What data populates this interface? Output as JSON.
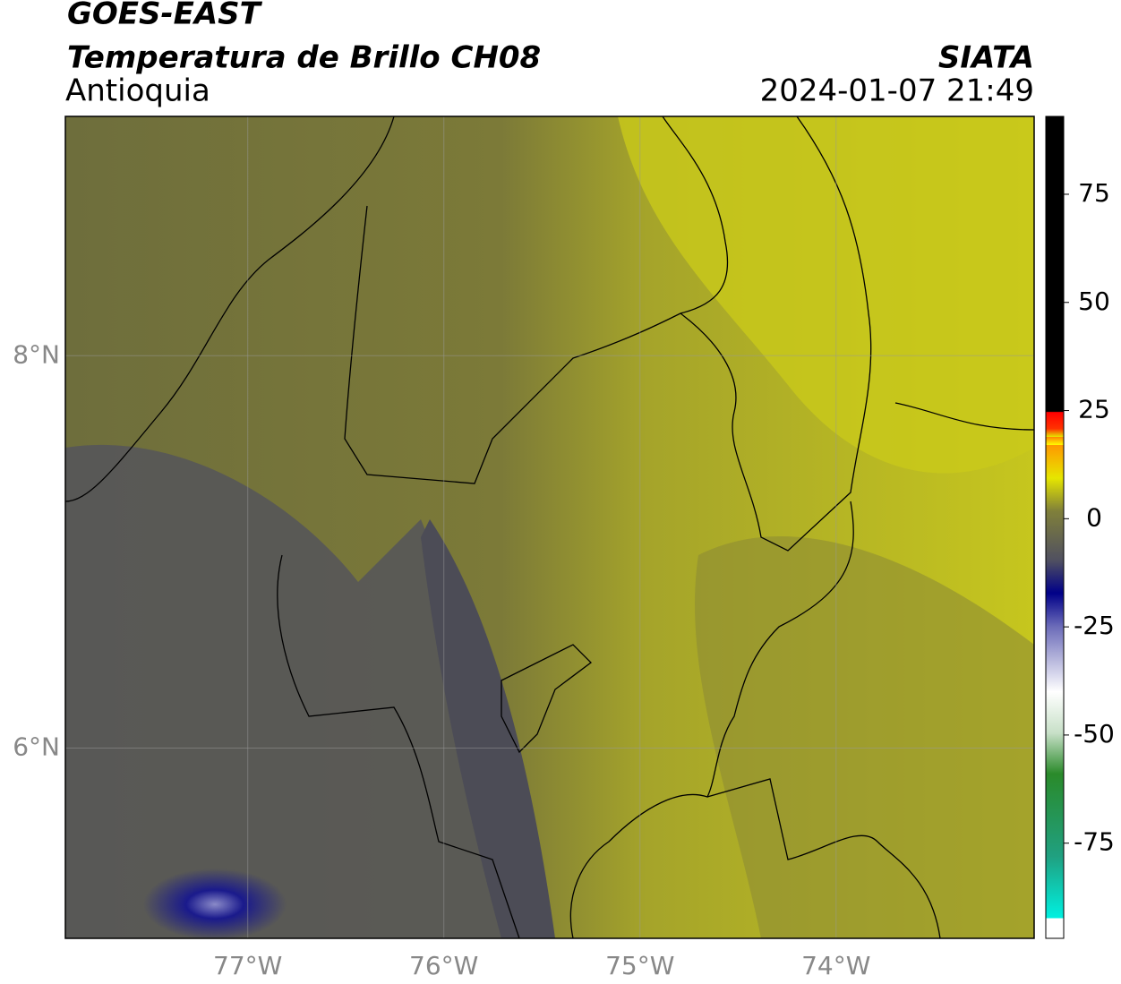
{
  "header": {
    "title": "GOES-EAST",
    "subtitle": "Temperatura de Brillo CH08",
    "region": "Antioquia",
    "source": "SIATA",
    "datetime": "2024-01-07 21:49"
  },
  "map": {
    "xlim": [
      -77.93,
      -72.99
    ],
    "ylim": [
      5.03,
      9.22
    ],
    "xticks": [
      {
        "value": -77,
        "label": "77°W"
      },
      {
        "value": -76,
        "label": "76°W"
      },
      {
        "value": -75,
        "label": "75°W"
      },
      {
        "value": -74,
        "label": "74°W"
      }
    ],
    "yticks": [
      {
        "value": 8,
        "label": "8°N"
      },
      {
        "value": 6,
        "label": "6°N"
      }
    ],
    "grid": true
  },
  "colorbar": {
    "lim": [
      -97,
      93
    ],
    "ticks": [
      75,
      50,
      25,
      0,
      -25,
      -50,
      -75
    ]
  }
}
